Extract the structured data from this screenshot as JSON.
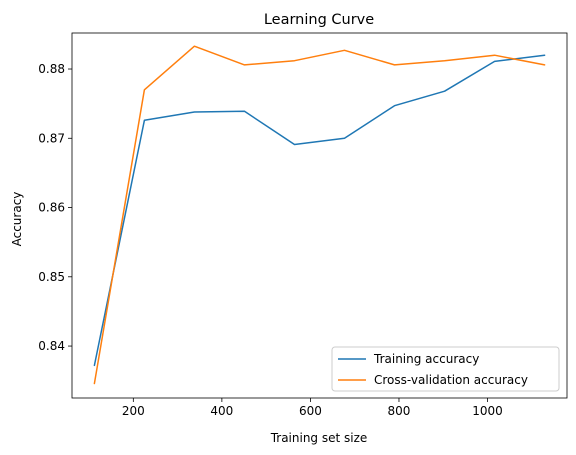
{
  "chart_data": {
    "type": "line",
    "title": "Learning Curve",
    "xlabel": "Training set size",
    "ylabel": "Accuracy",
    "xlim": [
      61.5,
      1179.5
    ],
    "ylim": [
      0.8325,
      0.8852
    ],
    "xticks": [
      200,
      400,
      600,
      800,
      1000
    ],
    "yticks": [
      0.84,
      0.85,
      0.86,
      0.87,
      0.88
    ],
    "x": [
      112,
      225,
      338,
      451,
      564,
      677,
      790,
      903,
      1016,
      1129
    ],
    "series": [
      {
        "name": "Training accuracy",
        "color": "#1f77b4",
        "values": [
          0.8372,
          0.8726,
          0.8738,
          0.8739,
          0.8691,
          0.87,
          0.8747,
          0.8768,
          0.8811,
          0.882
        ]
      },
      {
        "name": "Cross-validation accuracy",
        "color": "#ff7f0e",
        "values": [
          0.8346,
          0.877,
          0.8833,
          0.8806,
          0.8812,
          0.8827,
          0.8806,
          0.8812,
          0.882,
          0.8806
        ]
      }
    ],
    "grid": false,
    "legend_position": "lower-right"
  }
}
